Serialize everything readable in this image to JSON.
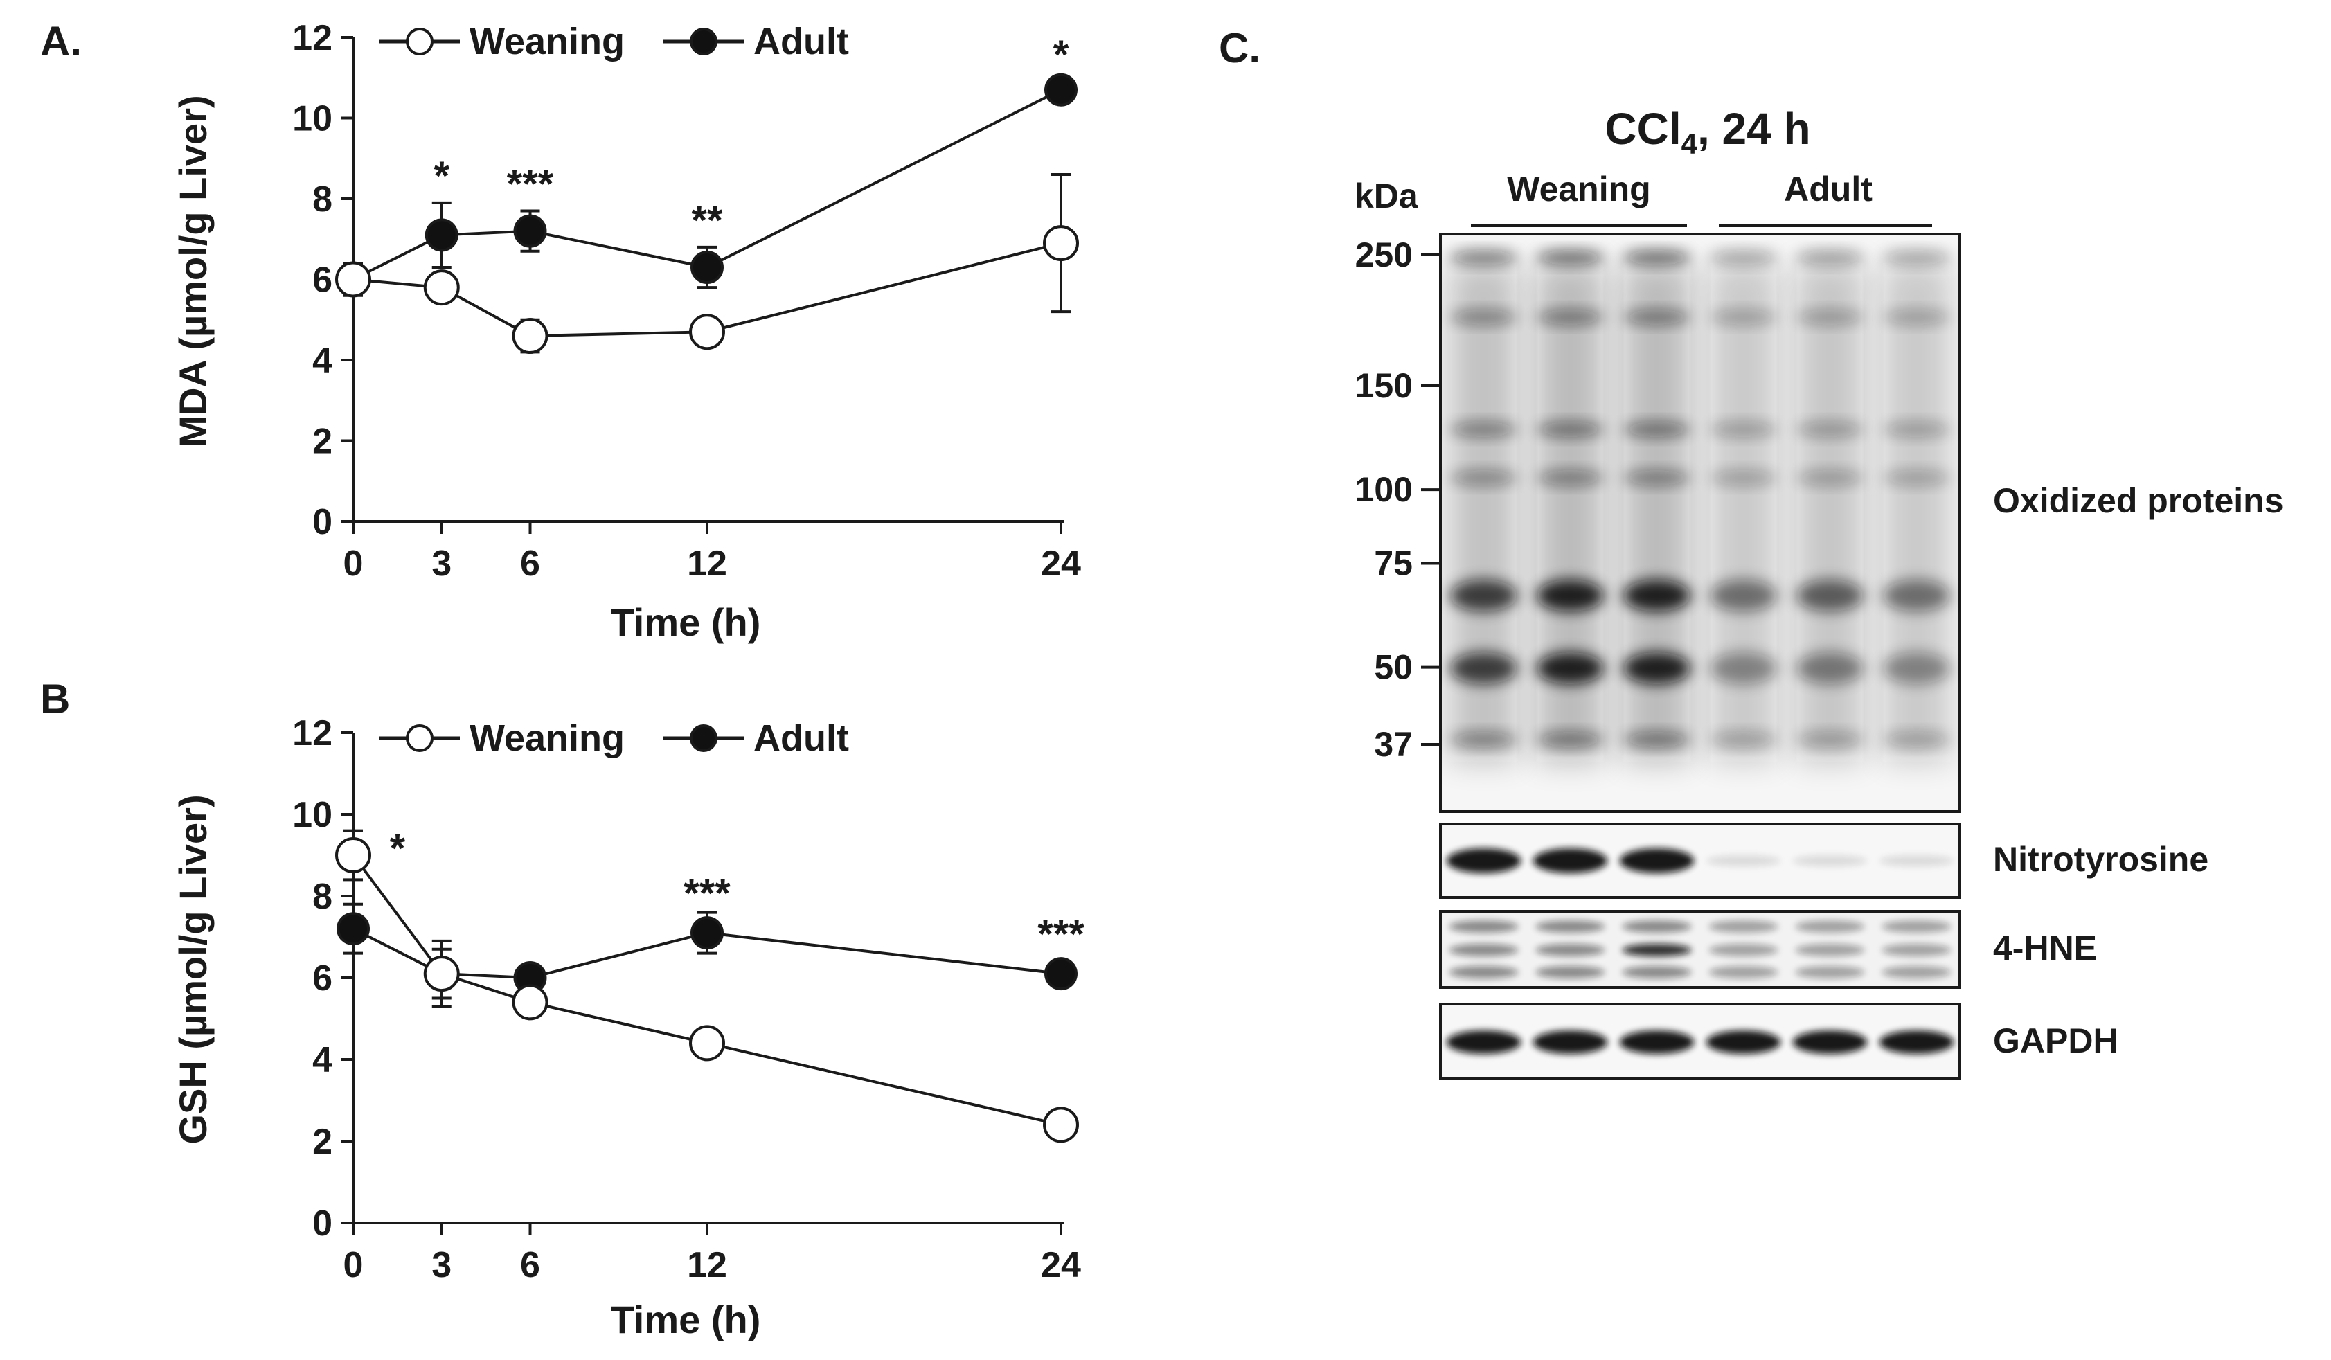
{
  "panels": {
    "a": "A.",
    "b": "B",
    "c": "C."
  },
  "chart_data": [
    {
      "type": "line",
      "panel": "A.",
      "xlabel": "Time (h)",
      "ylabel": "MDA (µmol/g Liver)",
      "x": [
        0,
        3,
        6,
        12,
        24
      ],
      "xticks": [
        "0",
        "3",
        "6",
        "12",
        "24"
      ],
      "yticks": [
        "0",
        "2",
        "4",
        "6",
        "8",
        "10",
        "12"
      ],
      "ylim": [
        0,
        12
      ],
      "legend_position": "top",
      "series": [
        {
          "name": "Weaning",
          "marker": "open-circle",
          "values": [
            6.0,
            5.8,
            4.6,
            4.7,
            6.9
          ],
          "errors": [
            0.4,
            0.3,
            0.4,
            0.2,
            1.7
          ]
        },
        {
          "name": "Adult",
          "marker": "filled-circle",
          "values": [
            6.0,
            7.1,
            7.2,
            6.3,
            10.7
          ],
          "errors": [
            0.3,
            0.8,
            0.5,
            0.5,
            0.2
          ]
        }
      ],
      "annotations": [
        {
          "x": 3,
          "y": 8.5,
          "text": "*"
        },
        {
          "x": 6,
          "y": 8.3,
          "text": "***"
        },
        {
          "x": 12,
          "y": 7.4,
          "text": "**"
        },
        {
          "x": 24,
          "y": 11.5,
          "text": "*"
        }
      ]
    },
    {
      "type": "line",
      "panel": "B",
      "xlabel": "Time (h)",
      "ylabel": "GSH (µmol/g Liver)",
      "x": [
        0,
        3,
        6,
        12,
        24
      ],
      "xticks": [
        "0",
        "3",
        "6",
        "12",
        "24"
      ],
      "yticks": [
        "0",
        "2",
        "4",
        "6",
        "8",
        "10",
        "12"
      ],
      "ylim": [
        0,
        12
      ],
      "legend_position": "top",
      "series": [
        {
          "name": "Weaning",
          "marker": "open-circle",
          "values": [
            9.0,
            6.1,
            5.4,
            4.4,
            2.4
          ],
          "errors": [
            0.6,
            0.8,
            0.2,
            0.2,
            0.2
          ]
        },
        {
          "name": "Adult",
          "marker": "filled-circle",
          "values": [
            7.2,
            6.1,
            6.0,
            7.1,
            6.1
          ],
          "errors": [
            0.6,
            0.6,
            0.2,
            0.5,
            0.2
          ]
        }
      ],
      "annotations": [
        {
          "x": 1.5,
          "y": 9.1,
          "text": "*"
        },
        {
          "x": 12,
          "y": 8.0,
          "text": "***"
        },
        {
          "x": 24,
          "y": 7.0,
          "text": "***"
        }
      ]
    }
  ],
  "blot": {
    "title_main": "CCl",
    "title_sub": "4",
    "title_rest": ", 24 h",
    "kda_label": "kDa",
    "groups": [
      "Weaning",
      "Adult"
    ],
    "markers": [
      "250",
      "150",
      "100",
      "75",
      "50",
      "37"
    ],
    "marker_values": [
      250,
      150,
      100,
      75,
      50,
      37
    ],
    "rows": [
      "Oxidized proteins",
      "Nitrotyrosine",
      "4-HNE",
      "GAPDH"
    ],
    "lanes": 6,
    "colors": {
      "band": "#111111",
      "background": "#f4f4f4"
    }
  }
}
